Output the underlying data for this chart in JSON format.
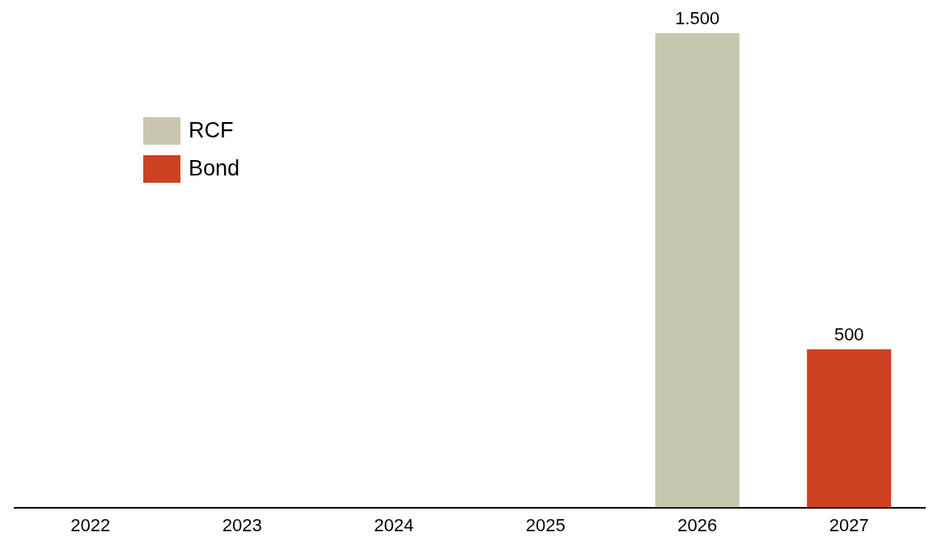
{
  "chart_data": {
    "type": "bar",
    "stacked": true,
    "categories": [
      "2022",
      "2023",
      "2024",
      "2025",
      "2026",
      "2027"
    ],
    "ylim": [
      0,
      1500
    ],
    "legend": "top left",
    "grid": false,
    "series": [
      {
        "name": "RCF",
        "color": "#c8c6af",
        "values": [
          null,
          null,
          null,
          null,
          1500,
          null
        ],
        "value_labels": [
          null,
          null,
          null,
          null,
          "1.500",
          null
        ]
      },
      {
        "name": "Bond",
        "color": "#cc4221",
        "values": [
          null,
          null,
          null,
          null,
          null,
          500
        ],
        "value_labels": [
          null,
          null,
          null,
          null,
          null,
          "500"
        ]
      }
    ]
  }
}
